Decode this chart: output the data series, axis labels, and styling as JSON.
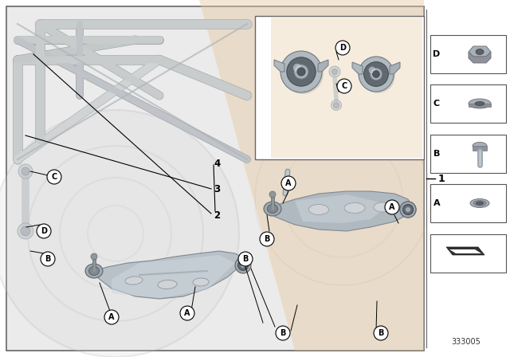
{
  "bg_color": "#ffffff",
  "border_color": "#666666",
  "main_bg": "#ebebeb",
  "peach_color": "#e8c9a0",
  "arm_silver": "#b0b8c0",
  "arm_dark": "#8090a0",
  "arm_light": "#c8d0d8",
  "ghost_color": "#c8ccd0",
  "ghost_dark": "#a0a8b0",
  "diagram_number": "333005",
  "label_items": [
    "D",
    "C",
    "B",
    "A"
  ],
  "inset_bg": "#ffffff"
}
